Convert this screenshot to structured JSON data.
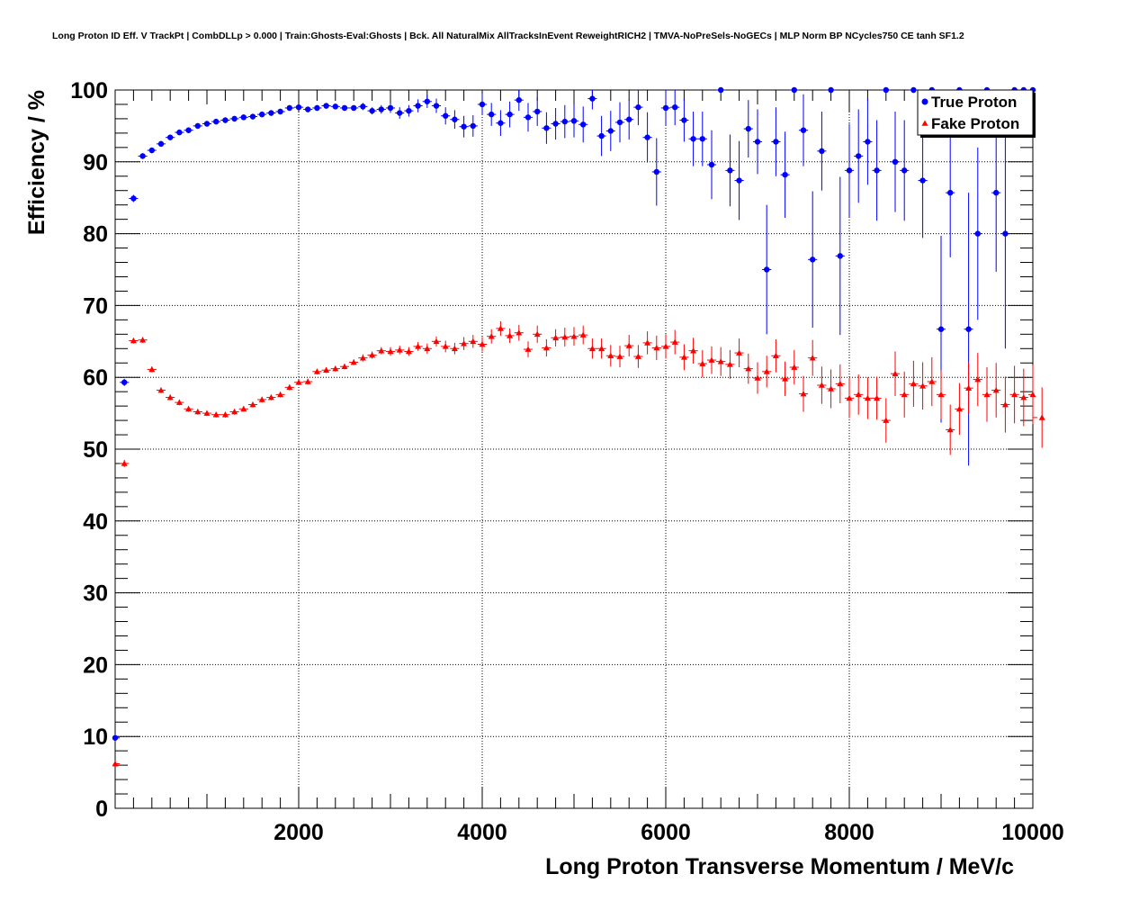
{
  "chart_data": {
    "type": "scatter",
    "title": "Long Proton ID Eff. V TrackPt | CombDLLp > 0.000 | Train:Ghosts-Eval:Ghosts | Bck. All NaturalMix AllTracksInEvent ReweightRICH2 | TMVA-NoPreSels-NoGECs | MLP Norm BP NCycles750 CE tanh SF1.2",
    "xlabel": "Long Proton Transverse Momentum / MeV/c",
    "ylabel": "Efficiency / %",
    "xlim": [
      0,
      10000
    ],
    "ylim": [
      0,
      100
    ],
    "x_ticks": [
      2000,
      4000,
      6000,
      8000,
      10000
    ],
    "y_ticks": [
      0,
      10,
      20,
      30,
      40,
      50,
      60,
      70,
      80,
      90,
      100
    ],
    "grid": true,
    "legend_position": "top-right",
    "series": [
      {
        "name": "True Proton",
        "color": "#0000ff",
        "marker": "circle",
        "points": [
          [
            0,
            9.8,
            0.5
          ],
          [
            100,
            59.3,
            0.5
          ],
          [
            200,
            84.9,
            0.5
          ],
          [
            300,
            90.8,
            0.4
          ],
          [
            400,
            91.6,
            0.4
          ],
          [
            500,
            92.5,
            0.4
          ],
          [
            600,
            93.4,
            0.4
          ],
          [
            700,
            94.1,
            0.4
          ],
          [
            800,
            94.4,
            0.4
          ],
          [
            900,
            95.0,
            0.4
          ],
          [
            1000,
            95.3,
            0.4
          ],
          [
            1100,
            95.6,
            0.4
          ],
          [
            1200,
            95.8,
            0.4
          ],
          [
            1300,
            96.0,
            0.4
          ],
          [
            1400,
            96.2,
            0.4
          ],
          [
            1500,
            96.3,
            0.4
          ],
          [
            1600,
            96.6,
            0.4
          ],
          [
            1700,
            96.8,
            0.4
          ],
          [
            1800,
            97.0,
            0.4
          ],
          [
            1900,
            97.5,
            0.4
          ],
          [
            2000,
            97.6,
            0.4
          ],
          [
            2100,
            97.3,
            0.4
          ],
          [
            2200,
            97.5,
            0.4
          ],
          [
            2300,
            97.8,
            0.4
          ],
          [
            2400,
            97.7,
            0.4
          ],
          [
            2500,
            97.5,
            0.4
          ],
          [
            2600,
            97.5,
            0.4
          ],
          [
            2700,
            97.7,
            0.5
          ],
          [
            2800,
            97.1,
            0.5
          ],
          [
            2900,
            97.3,
            0.6
          ],
          [
            3000,
            97.5,
            0.7
          ],
          [
            3100,
            96.8,
            0.8
          ],
          [
            3200,
            97.1,
            0.8
          ],
          [
            3300,
            97.8,
            0.9
          ],
          [
            3400,
            98.4,
            0.9
          ],
          [
            3500,
            97.8,
            1.0
          ],
          [
            3600,
            96.4,
            1.2
          ],
          [
            3700,
            95.9,
            1.3
          ],
          [
            3800,
            94.9,
            1.5
          ],
          [
            3900,
            95.0,
            1.5
          ],
          [
            4000,
            98.0,
            1.5
          ],
          [
            4100,
            96.6,
            1.6
          ],
          [
            4200,
            95.4,
            1.8
          ],
          [
            4300,
            96.6,
            1.8
          ],
          [
            4400,
            98.6,
            1.5
          ],
          [
            4500,
            96.2,
            2.0
          ],
          [
            4600,
            97.0,
            2.0
          ],
          [
            4700,
            94.7,
            2.2
          ],
          [
            4800,
            95.3,
            2.2
          ],
          [
            4900,
            95.6,
            2.3
          ],
          [
            5000,
            95.7,
            2.3
          ],
          [
            5100,
            95.2,
            2.5
          ],
          [
            5200,
            98.8,
            1.5
          ],
          [
            5300,
            93.6,
            2.8
          ],
          [
            5400,
            94.3,
            2.8
          ],
          [
            5500,
            95.5,
            2.8
          ],
          [
            5600,
            95.9,
            2.8
          ],
          [
            5700,
            97.6,
            2.5
          ],
          [
            5800,
            93.4,
            3.5
          ],
          [
            5900,
            88.6,
            4.7
          ],
          [
            6000,
            97.5,
            2.5
          ],
          [
            6100,
            97.6,
            2.5
          ],
          [
            6200,
            95.8,
            3.0
          ],
          [
            6300,
            93.2,
            3.8
          ],
          [
            6400,
            93.2,
            3.8
          ],
          [
            6500,
            89.6,
            4.8
          ],
          [
            6600,
            100.0,
            0.0
          ],
          [
            6700,
            88.8,
            5.0
          ],
          [
            6800,
            87.4,
            5.5
          ],
          [
            6900,
            94.6,
            4.0
          ],
          [
            7000,
            92.8,
            4.5
          ],
          [
            7100,
            75.0,
            9.0
          ],
          [
            7200,
            92.8,
            4.8
          ],
          [
            7300,
            88.2,
            6.0
          ],
          [
            7400,
            100.0,
            0.0
          ],
          [
            7500,
            94.4,
            5.0
          ],
          [
            7600,
            76.4,
            9.5
          ],
          [
            7700,
            91.5,
            5.5
          ],
          [
            7800,
            100.0,
            0.0
          ],
          [
            7900,
            76.9,
            11.0
          ],
          [
            8000,
            88.8,
            6.5
          ],
          [
            8100,
            90.8,
            6.5
          ],
          [
            8200,
            92.8,
            6.0
          ],
          [
            8300,
            88.8,
            7.0
          ],
          [
            8400,
            100.0,
            0.0
          ],
          [
            8500,
            90.0,
            7.0
          ],
          [
            8600,
            88.8,
            7.0
          ],
          [
            8700,
            100.0,
            0.0
          ],
          [
            8800,
            87.4,
            8.0
          ],
          [
            8900,
            100.0,
            0.0
          ],
          [
            9000,
            66.7,
            13.0
          ],
          [
            9100,
            85.7,
            9.0
          ],
          [
            9200,
            100.0,
            0.0
          ],
          [
            9300,
            66.7,
            19.0
          ],
          [
            9400,
            80.0,
            12.0
          ],
          [
            9500,
            100.0,
            0.0
          ],
          [
            9600,
            85.7,
            11.0
          ],
          [
            9700,
            80.0,
            16.0
          ],
          [
            9800,
            100.0,
            0.0
          ],
          [
            9900,
            100.0,
            0.0
          ],
          [
            10000,
            100.0,
            0.0
          ]
        ]
      },
      {
        "name": "Fake Proton",
        "color": "#ff0000",
        "marker": "triangle",
        "points": [
          [
            0,
            6.2,
            0.3
          ],
          [
            100,
            48.0,
            0.5
          ],
          [
            200,
            65.1,
            0.4
          ],
          [
            300,
            65.2,
            0.4
          ],
          [
            400,
            61.1,
            0.4
          ],
          [
            500,
            58.2,
            0.4
          ],
          [
            600,
            57.2,
            0.4
          ],
          [
            700,
            56.5,
            0.4
          ],
          [
            800,
            55.6,
            0.4
          ],
          [
            900,
            55.2,
            0.4
          ],
          [
            1000,
            55.0,
            0.4
          ],
          [
            1100,
            54.8,
            0.4
          ],
          [
            1200,
            54.8,
            0.4
          ],
          [
            1300,
            55.2,
            0.4
          ],
          [
            1400,
            55.6,
            0.4
          ],
          [
            1500,
            56.2,
            0.4
          ],
          [
            1600,
            56.9,
            0.4
          ],
          [
            1700,
            57.2,
            0.4
          ],
          [
            1800,
            57.6,
            0.4
          ],
          [
            1900,
            58.6,
            0.4
          ],
          [
            2000,
            59.3,
            0.4
          ],
          [
            2100,
            59.4,
            0.4
          ],
          [
            2200,
            60.8,
            0.4
          ],
          [
            2300,
            61.0,
            0.4
          ],
          [
            2400,
            61.2,
            0.4
          ],
          [
            2500,
            61.5,
            0.4
          ],
          [
            2600,
            62.1,
            0.4
          ],
          [
            2700,
            62.7,
            0.5
          ],
          [
            2800,
            63.1,
            0.5
          ],
          [
            2900,
            63.7,
            0.5
          ],
          [
            3000,
            63.6,
            0.6
          ],
          [
            3100,
            63.8,
            0.6
          ],
          [
            3200,
            63.6,
            0.6
          ],
          [
            3300,
            64.3,
            0.6
          ],
          [
            3400,
            64.0,
            0.7
          ],
          [
            3500,
            65.0,
            0.7
          ],
          [
            3600,
            64.3,
            0.8
          ],
          [
            3700,
            64.0,
            0.8
          ],
          [
            3800,
            64.7,
            0.9
          ],
          [
            3900,
            65.0,
            0.9
          ],
          [
            4000,
            64.6,
            1.0
          ],
          [
            4100,
            65.7,
            1.0
          ],
          [
            4200,
            66.8,
            1.0
          ],
          [
            4300,
            65.8,
            1.0
          ],
          [
            4400,
            66.2,
            1.1
          ],
          [
            4500,
            63.9,
            1.1
          ],
          [
            4600,
            66.0,
            1.2
          ],
          [
            4700,
            64.1,
            1.2
          ],
          [
            4800,
            65.5,
            1.2
          ],
          [
            4900,
            65.6,
            1.3
          ],
          [
            5000,
            65.7,
            1.3
          ],
          [
            5100,
            65.9,
            1.3
          ],
          [
            5200,
            64.0,
            1.4
          ],
          [
            5300,
            64.0,
            1.4
          ],
          [
            5400,
            63.0,
            1.5
          ],
          [
            5500,
            62.9,
            1.5
          ],
          [
            5600,
            64.4,
            1.5
          ],
          [
            5700,
            62.9,
            1.6
          ],
          [
            5800,
            64.8,
            1.6
          ],
          [
            5900,
            64.1,
            1.7
          ],
          [
            6000,
            64.3,
            1.7
          ],
          [
            6100,
            64.9,
            1.7
          ],
          [
            6200,
            62.8,
            1.8
          ],
          [
            6300,
            63.7,
            1.8
          ],
          [
            6400,
            61.9,
            1.9
          ],
          [
            6500,
            62.4,
            1.9
          ],
          [
            6600,
            62.2,
            2.0
          ],
          [
            6700,
            61.8,
            2.0
          ],
          [
            6800,
            63.4,
            2.0
          ],
          [
            6900,
            61.2,
            2.1
          ],
          [
            7000,
            59.9,
            2.2
          ],
          [
            7100,
            60.8,
            2.2
          ],
          [
            7200,
            63.0,
            2.3
          ],
          [
            7300,
            59.8,
            2.4
          ],
          [
            7400,
            61.4,
            2.4
          ],
          [
            7500,
            57.7,
            2.5
          ],
          [
            7600,
            62.7,
            2.5
          ],
          [
            7700,
            58.9,
            2.6
          ],
          [
            7800,
            58.4,
            2.7
          ],
          [
            7900,
            59.1,
            2.7
          ],
          [
            8000,
            57.1,
            2.8
          ],
          [
            8100,
            57.6,
            2.8
          ],
          [
            8200,
            57.1,
            2.9
          ],
          [
            8300,
            57.1,
            3.0
          ],
          [
            8400,
            54.0,
            3.1
          ],
          [
            8500,
            60.5,
            3.1
          ],
          [
            8600,
            57.6,
            3.2
          ],
          [
            8700,
            59.1,
            3.2
          ],
          [
            8800,
            58.8,
            3.3
          ],
          [
            8900,
            59.4,
            3.4
          ],
          [
            9000,
            57.6,
            3.4
          ],
          [
            9100,
            52.7,
            3.5
          ],
          [
            9200,
            55.6,
            3.6
          ],
          [
            9300,
            58.5,
            3.6
          ],
          [
            9400,
            59.7,
            3.7
          ],
          [
            9500,
            57.6,
            3.8
          ],
          [
            9600,
            58.2,
            3.8
          ],
          [
            9700,
            56.2,
            3.9
          ],
          [
            9800,
            57.6,
            4.0
          ],
          [
            9900,
            57.2,
            4.0
          ],
          [
            10000,
            57.6,
            4.1
          ],
          [
            10100,
            54.4,
            4.2
          ]
        ]
      }
    ]
  }
}
